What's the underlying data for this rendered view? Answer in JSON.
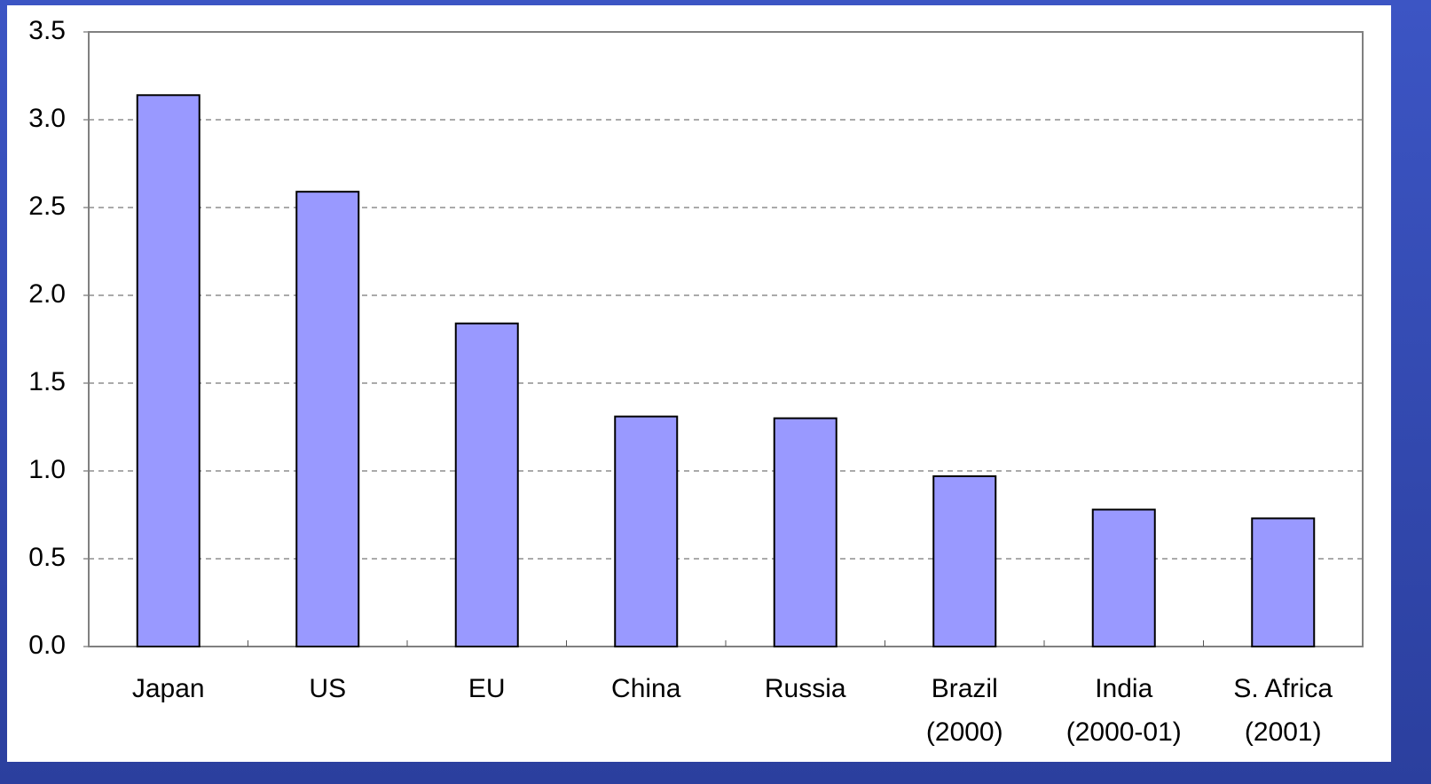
{
  "chart_data": {
    "type": "bar",
    "categories": [
      "Japan",
      "US",
      "EU",
      "China",
      "Russia",
      "Brazil (2000)",
      "India (2000-01)",
      "S. Africa (2001)"
    ],
    "values": [
      3.14,
      2.59,
      1.84,
      1.31,
      1.3,
      0.97,
      0.78,
      0.73
    ],
    "color": "#9999ff",
    "ylim": [
      0,
      3.5
    ],
    "yticks": [
      {
        "value": 0,
        "label": "0.0"
      },
      0.5,
      {
        "value": 1,
        "label": "1.0"
      },
      1.5,
      {
        "value": 2,
        "label": "2.0"
      },
      2.5,
      {
        "value": 3,
        "label": "3.0"
      },
      3.5
    ],
    "grid": true
  }
}
